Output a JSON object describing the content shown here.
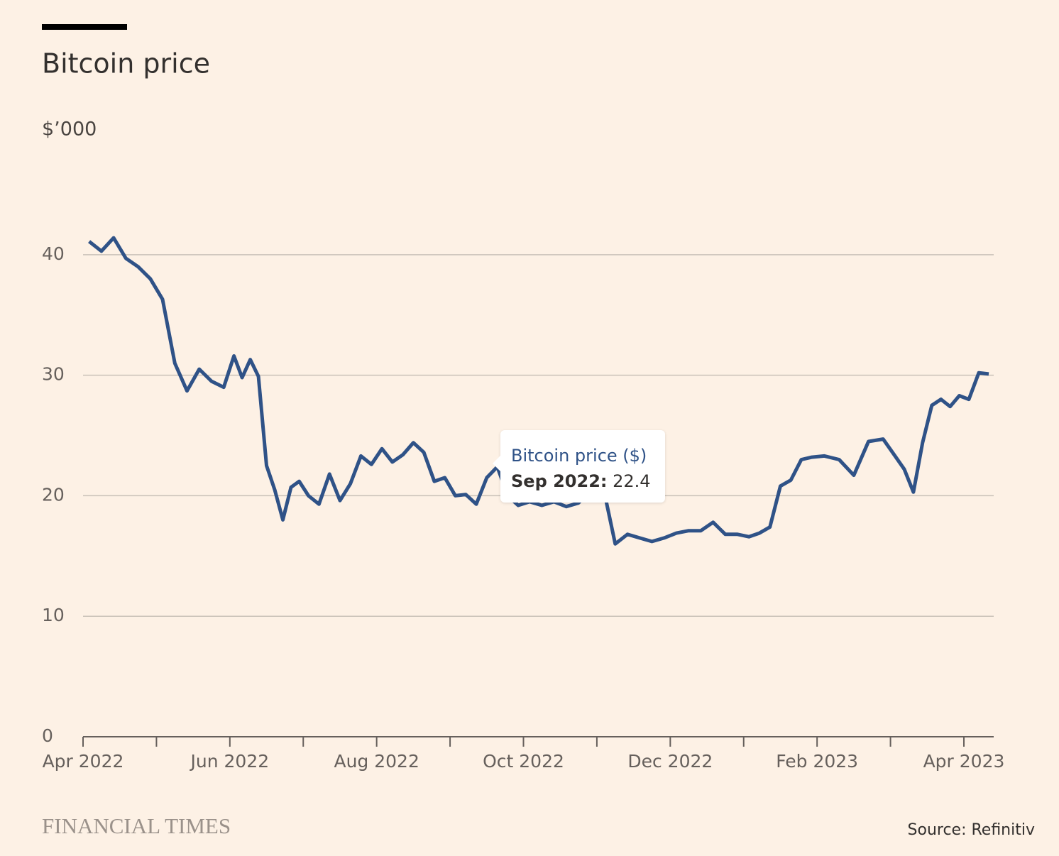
{
  "chart_data": {
    "type": "line",
    "title": "Bitcoin price",
    "y_unit_label": "$’000",
    "brand": "FINANCIAL TIMES",
    "source": "Source: Refinitiv",
    "x": [
      "2022-04",
      "2022-04",
      "2022-04",
      "2022-04",
      "2022-04",
      "2022-04",
      "2022-05",
      "2022-05",
      "2022-05",
      "2022-05",
      "2022-05",
      "2022-05",
      "2022-06",
      "2022-06",
      "2022-06",
      "2022-06",
      "2022-06",
      "2022-06",
      "2022-06",
      "2022-06",
      "2022-06",
      "2022-07",
      "2022-07",
      "2022-07",
      "2022-07",
      "2022-07",
      "2022-07",
      "2022-07",
      "2022-08",
      "2022-08",
      "2022-08",
      "2022-08",
      "2022-08",
      "2022-08",
      "2022-08",
      "2022-09",
      "2022-09",
      "2022-09",
      "2022-09",
      "2022-09",
      "2022-09",
      "2022-09",
      "2022-10",
      "2022-10",
      "2022-10",
      "2022-10",
      "2022-10",
      "2022-10",
      "2022-11",
      "2022-11",
      "2022-11",
      "2022-11",
      "2022-11",
      "2022-11",
      "2022-12",
      "2022-12",
      "2022-12",
      "2022-12",
      "2022-12",
      "2022-12",
      "2023-01",
      "2023-01",
      "2023-01",
      "2023-01",
      "2023-01",
      "2023-01",
      "2023-01",
      "2023-02",
      "2023-02",
      "2023-02",
      "2023-02",
      "2023-02",
      "2023-03",
      "2023-03",
      "2023-03",
      "2023-03",
      "2023-03",
      "2023-03",
      "2023-03",
      "2023-03",
      "2023-04",
      "2023-04",
      "2023-04"
    ],
    "series": [
      {
        "name": "Bitcoin price ($)",
        "color": "#2f5287",
        "values": [
          41.1,
          40.3,
          41.4,
          39.7,
          39.0,
          38.0,
          36.3,
          31.0,
          28.7,
          30.5,
          29.5,
          29.0,
          31.6,
          29.8,
          31.3,
          29.9,
          22.5,
          20.5,
          18.0,
          20.7,
          21.2,
          20.0,
          19.3,
          21.8,
          19.6,
          21.0,
          23.3,
          22.6,
          23.9,
          22.8,
          23.4,
          24.4,
          23.6,
          21.2,
          21.5,
          20.0,
          20.1,
          19.3,
          21.5,
          22.4,
          20.0,
          19.2,
          19.5,
          19.2,
          19.5,
          19.1,
          19.4,
          20.5,
          20.8,
          16.0,
          16.8,
          16.5,
          16.2,
          16.5,
          16.9,
          17.1,
          17.1,
          17.8,
          16.8,
          16.8,
          16.6,
          16.9,
          17.4,
          20.8,
          21.3,
          23.0,
          23.2,
          23.3,
          23.0,
          21.7,
          24.5,
          24.7,
          23.3,
          22.2,
          20.3,
          24.4,
          27.5,
          28.0,
          27.4,
          28.3,
          28.0,
          30.2,
          30.1
        ]
      }
    ],
    "xlim": [
      "2022-04",
      "2023-04"
    ],
    "xticks": [
      {
        "value": "2022-04",
        "label": "Apr 2022"
      },
      {
        "value": "2022-06",
        "label": "Jun 2022"
      },
      {
        "value": "2022-08",
        "label": "Aug 2022"
      },
      {
        "value": "2022-10",
        "label": "Oct 2022"
      },
      {
        "value": "2022-12",
        "label": "Dec 2022"
      },
      {
        "value": "2023-02",
        "label": "Feb 2023"
      },
      {
        "value": "2023-04",
        "label": "Apr 2023"
      }
    ],
    "x_minor_ticks": [
      "2022-05",
      "2022-07",
      "2022-09",
      "2022-11",
      "2023-01",
      "2023-03"
    ],
    "ylim": [
      0,
      47
    ],
    "yticks": [
      0,
      10,
      20,
      30,
      40
    ],
    "grid": true,
    "tooltip": {
      "label": "Sep 2022:",
      "value": 22.4
    }
  }
}
